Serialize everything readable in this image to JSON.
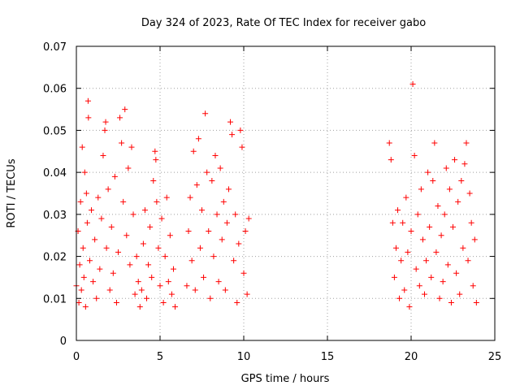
{
  "chart_data": {
    "type": "scatter",
    "title": "Day 324 of 2023, Rate Of TEC Index for receiver gabo",
    "xlabel": "GPS time / hours",
    "ylabel": "ROTI / TECUs",
    "xlim": [
      0,
      25
    ],
    "ylim": [
      0,
      0.07
    ],
    "xticks": [
      "0",
      "5",
      "10",
      "15",
      "20",
      "25"
    ],
    "yticks": [
      "0",
      "0.01",
      "0.02",
      "0.03",
      "0.04",
      "0.05",
      "0.06",
      "0.07"
    ],
    "xtick_values": [
      0,
      5,
      10,
      15,
      20,
      25
    ],
    "ytick_values": [
      0,
      0.01,
      0.02,
      0.03,
      0.04,
      0.05,
      0.06,
      0.07
    ],
    "grid": true,
    "marker": "plus",
    "color": "#ff0000",
    "series": [
      {
        "points": [
          [
            0.0,
            0.013
          ],
          [
            0.1,
            0.026
          ],
          [
            0.15,
            0.009
          ],
          [
            0.2,
            0.018
          ],
          [
            0.25,
            0.033
          ],
          [
            0.3,
            0.012
          ],
          [
            0.35,
            0.046
          ],
          [
            0.4,
            0.022
          ],
          [
            0.45,
            0.015
          ],
          [
            0.5,
            0.04
          ],
          [
            0.55,
            0.008
          ],
          [
            0.6,
            0.035
          ],
          [
            0.65,
            0.028
          ],
          [
            0.7,
            0.057
          ],
          [
            0.72,
            0.053
          ],
          [
            0.8,
            0.019
          ],
          [
            0.9,
            0.031
          ],
          [
            1.0,
            0.014
          ],
          [
            1.1,
            0.024
          ],
          [
            1.2,
            0.01
          ],
          [
            1.3,
            0.034
          ],
          [
            1.4,
            0.017
          ],
          [
            1.5,
            0.029
          ],
          [
            1.6,
            0.044
          ],
          [
            1.7,
            0.05
          ],
          [
            1.75,
            0.052
          ],
          [
            1.8,
            0.022
          ],
          [
            1.9,
            0.036
          ],
          [
            2.0,
            0.012
          ],
          [
            2.1,
            0.027
          ],
          [
            2.2,
            0.016
          ],
          [
            2.3,
            0.039
          ],
          [
            2.4,
            0.009
          ],
          [
            2.5,
            0.021
          ],
          [
            2.6,
            0.053
          ],
          [
            2.7,
            0.047
          ],
          [
            2.8,
            0.033
          ],
          [
            2.9,
            0.055
          ],
          [
            3.0,
            0.025
          ],
          [
            3.1,
            0.041
          ],
          [
            3.2,
            0.018
          ],
          [
            3.3,
            0.046
          ],
          [
            3.4,
            0.03
          ],
          [
            3.5,
            0.011
          ],
          [
            3.6,
            0.02
          ],
          [
            3.7,
            0.014
          ],
          [
            3.8,
            0.008
          ],
          [
            3.9,
            0.012
          ],
          [
            4.0,
            0.023
          ],
          [
            4.1,
            0.031
          ],
          [
            4.2,
            0.01
          ],
          [
            4.3,
            0.018
          ],
          [
            4.4,
            0.027
          ],
          [
            4.5,
            0.015
          ],
          [
            4.6,
            0.038
          ],
          [
            4.7,
            0.045
          ],
          [
            4.75,
            0.043
          ],
          [
            4.8,
            0.033
          ],
          [
            4.9,
            0.022
          ],
          [
            5.0,
            0.013
          ],
          [
            5.1,
            0.029
          ],
          [
            5.2,
            0.009
          ],
          [
            5.3,
            0.02
          ],
          [
            5.4,
            0.034
          ],
          [
            5.5,
            0.014
          ],
          [
            5.6,
            0.025
          ],
          [
            5.7,
            0.011
          ],
          [
            5.8,
            0.017
          ],
          [
            5.9,
            0.008
          ],
          [
            6.6,
            0.013
          ],
          [
            6.7,
            0.026
          ],
          [
            6.8,
            0.034
          ],
          [
            6.9,
            0.019
          ],
          [
            7.0,
            0.045
          ],
          [
            7.1,
            0.012
          ],
          [
            7.2,
            0.037
          ],
          [
            7.3,
            0.048
          ],
          [
            7.4,
            0.022
          ],
          [
            7.5,
            0.031
          ],
          [
            7.6,
            0.015
          ],
          [
            7.7,
            0.054
          ],
          [
            7.8,
            0.04
          ],
          [
            7.9,
            0.026
          ],
          [
            8.0,
            0.01
          ],
          [
            8.1,
            0.038
          ],
          [
            8.2,
            0.02
          ],
          [
            8.3,
            0.044
          ],
          [
            8.4,
            0.03
          ],
          [
            8.5,
            0.014
          ],
          [
            8.6,
            0.041
          ],
          [
            8.7,
            0.024
          ],
          [
            8.8,
            0.033
          ],
          [
            8.9,
            0.012
          ],
          [
            9.0,
            0.028
          ],
          [
            9.1,
            0.036
          ],
          [
            9.2,
            0.052
          ],
          [
            9.3,
            0.049
          ],
          [
            9.4,
            0.019
          ],
          [
            9.5,
            0.03
          ],
          [
            9.6,
            0.009
          ],
          [
            9.7,
            0.023
          ],
          [
            9.8,
            0.05
          ],
          [
            9.9,
            0.046
          ],
          [
            10.0,
            0.016
          ],
          [
            10.1,
            0.026
          ],
          [
            10.2,
            0.011
          ],
          [
            10.3,
            0.029
          ],
          [
            18.7,
            0.047
          ],
          [
            18.8,
            0.043
          ],
          [
            18.9,
            0.028
          ],
          [
            19.0,
            0.015
          ],
          [
            19.1,
            0.022
          ],
          [
            19.2,
            0.031
          ],
          [
            19.3,
            0.01
          ],
          [
            19.4,
            0.019
          ],
          [
            19.5,
            0.028
          ],
          [
            19.6,
            0.012
          ],
          [
            19.7,
            0.034
          ],
          [
            19.8,
            0.021
          ],
          [
            19.9,
            0.008
          ],
          [
            20.0,
            0.026
          ],
          [
            20.1,
            0.061
          ],
          [
            20.2,
            0.044
          ],
          [
            20.3,
            0.017
          ],
          [
            20.4,
            0.03
          ],
          [
            20.5,
            0.013
          ],
          [
            20.6,
            0.036
          ],
          [
            20.7,
            0.024
          ],
          [
            20.8,
            0.011
          ],
          [
            20.9,
            0.019
          ],
          [
            21.0,
            0.04
          ],
          [
            21.1,
            0.027
          ],
          [
            21.2,
            0.015
          ],
          [
            21.3,
            0.038
          ],
          [
            21.4,
            0.047
          ],
          [
            21.5,
            0.021
          ],
          [
            21.6,
            0.032
          ],
          [
            21.7,
            0.01
          ],
          [
            21.8,
            0.025
          ],
          [
            21.9,
            0.014
          ],
          [
            22.0,
            0.03
          ],
          [
            22.1,
            0.041
          ],
          [
            22.2,
            0.018
          ],
          [
            22.3,
            0.036
          ],
          [
            22.4,
            0.009
          ],
          [
            22.5,
            0.027
          ],
          [
            22.6,
            0.043
          ],
          [
            22.7,
            0.016
          ],
          [
            22.8,
            0.033
          ],
          [
            22.9,
            0.011
          ],
          [
            23.0,
            0.038
          ],
          [
            23.1,
            0.022
          ],
          [
            23.2,
            0.042
          ],
          [
            23.3,
            0.047
          ],
          [
            23.4,
            0.019
          ],
          [
            23.5,
            0.035
          ],
          [
            23.6,
            0.028
          ],
          [
            23.7,
            0.013
          ],
          [
            23.8,
            0.024
          ],
          [
            23.9,
            0.009
          ]
        ]
      }
    ]
  }
}
